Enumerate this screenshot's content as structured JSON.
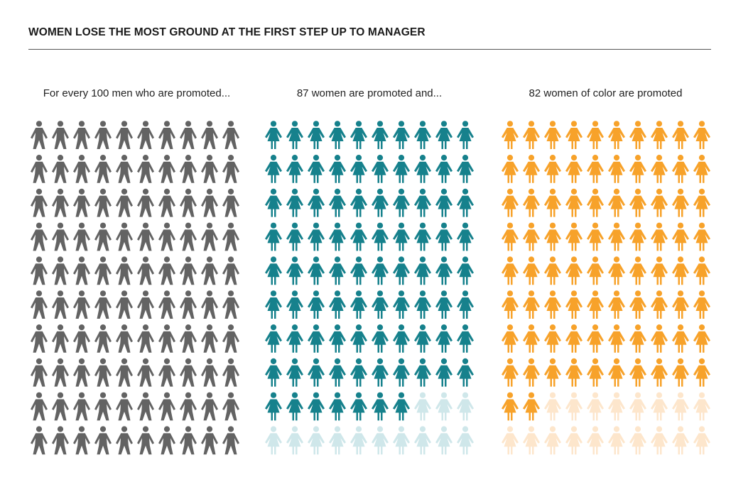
{
  "title": "WOMEN LOSE THE MOST GROUND AT THE FIRST STEP UP TO MANAGER",
  "chart_data": {
    "type": "pictogram",
    "total_per_panel": 100,
    "grid": {
      "rows": 10,
      "columns": 10
    },
    "panels": [
      {
        "label": "For every 100 men who are promoted...",
        "count": 100,
        "icon": "man-icon",
        "color": "#636363",
        "faded_color": "#d9d9d9"
      },
      {
        "label": "87 women are promoted and...",
        "count": 87,
        "icon": "woman-icon",
        "color": "#16818c",
        "faded_color": "#cfe7ea"
      },
      {
        "label": "82 women of color are promoted",
        "count": 82,
        "icon": "woman-icon",
        "color": "#f7a22a",
        "faded_color": "#fde6cc"
      }
    ]
  }
}
